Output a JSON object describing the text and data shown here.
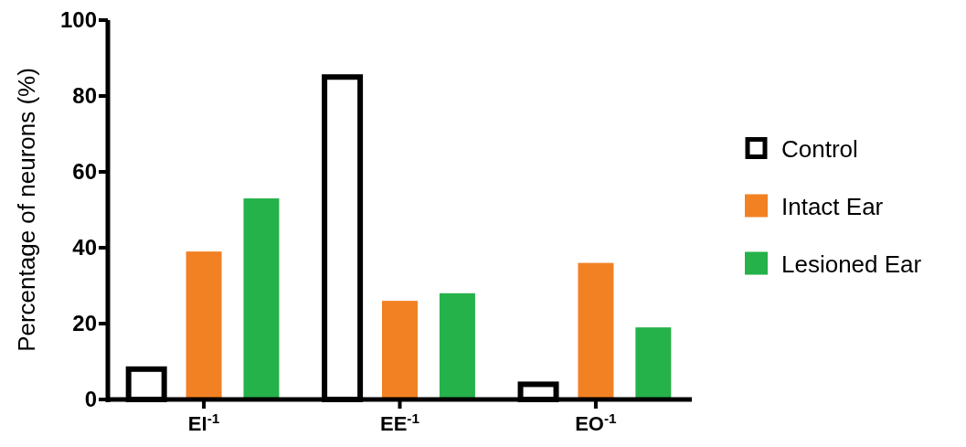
{
  "chart_data": {
    "type": "bar",
    "ylabel": "Percentage of neurons (%)",
    "categories": [
      "EI$^{-1}$",
      "EE$^{-1}$",
      "EO$^{-1}$"
    ],
    "series": [
      {
        "name": "Control",
        "color": "#ffffff",
        "values": [
          8,
          85,
          4
        ]
      },
      {
        "name": "Intact Ear",
        "color": "#f28123",
        "values": [
          39,
          26,
          36
        ]
      },
      {
        "name": "Lesioned Ear",
        "color": "#25b24b",
        "values": [
          53,
          28,
          19
        ]
      }
    ],
    "ylim": [
      0,
      100
    ],
    "yticks": [
      0,
      20,
      40,
      60,
      80,
      100
    ],
    "grid": false,
    "legend": "right"
  }
}
